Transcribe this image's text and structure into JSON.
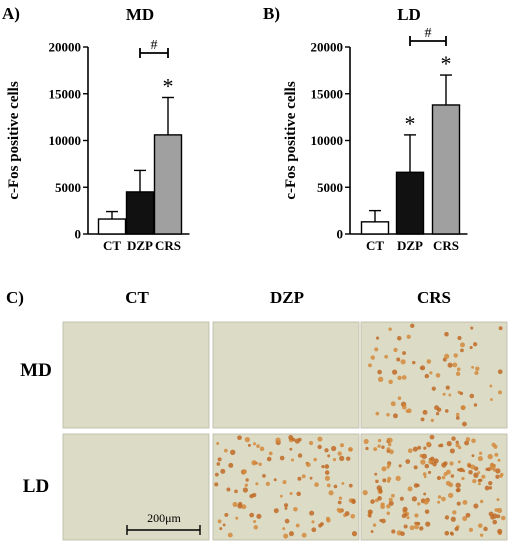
{
  "panel_letters": {
    "a": "A)",
    "b": "B)",
    "c": "C)"
  },
  "chart_data": [
    {
      "type": "bar",
      "title": "MD",
      "ylabel": "c-Fos positive cells",
      "categories": [
        "CT",
        "DZP",
        "CRS"
      ],
      "values": [
        1600,
        4500,
        10600
      ],
      "errors": [
        800,
        2300,
        4000
      ],
      "colors": [
        "#ffffff",
        "#111111",
        "#a0a0a0"
      ],
      "yticks": [
        0,
        5000,
        10000,
        15000,
        20000
      ],
      "ylim": [
        0,
        20000
      ],
      "significance": {
        "star": "*",
        "hash": "#",
        "star_on": [
          "CRS"
        ],
        "hash_between": [
          "DZP",
          "CRS"
        ]
      }
    },
    {
      "type": "bar",
      "title": "LD",
      "ylabel": "c-Fos positive cells",
      "categories": [
        "CT",
        "DZP",
        "CRS"
      ],
      "values": [
        1300,
        6600,
        13800
      ],
      "errors": [
        1200,
        4000,
        3200
      ],
      "colors": [
        "#ffffff",
        "#111111",
        "#a0a0a0"
      ],
      "yticks": [
        0,
        5000,
        10000,
        15000,
        20000
      ],
      "ylim": [
        0,
        20000
      ],
      "significance": {
        "star": "*",
        "hash": "#",
        "star_on": [
          "DZP",
          "CRS"
        ],
        "hash_between": [
          "DZP",
          "CRS"
        ]
      }
    }
  ],
  "micrographs": {
    "columns": [
      "CT",
      "DZP",
      "CRS"
    ],
    "rows": [
      "MD",
      "LD"
    ],
    "dot_density": [
      [
        0,
        0,
        0.35
      ],
      [
        0,
        0.55,
        0.9
      ]
    ],
    "scale_bar": "200μm"
  }
}
